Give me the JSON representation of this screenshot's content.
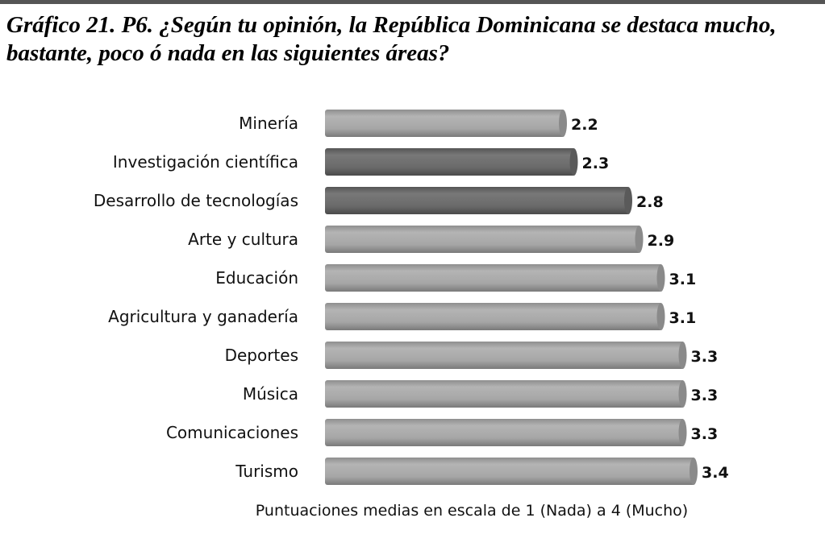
{
  "title": "Gráfico 21. P6. ¿Según tu opinión, la República Dominicana se destaca mucho, bastante, poco ó nada en las siguientes áreas?",
  "chart_data": {
    "type": "bar",
    "orientation": "horizontal",
    "title": "Gráfico 21. P6. ¿Según tu opinión, la República Dominicana se destaca mucho, bastante, poco ó nada en las siguientes áreas?",
    "xlabel": "Puntuaciones medias en escala de 1 (Nada) a  4 (Mucho)",
    "ylabel": "",
    "categories": [
      "Minería",
      "Investigación científica",
      "Desarrollo de tecnologías",
      "Arte y cultura",
      "Educación",
      "Agricultura y ganadería",
      "Deportes",
      "Música",
      "Comunicaciones",
      "Turismo"
    ],
    "values": [
      2.2,
      2.3,
      2.8,
      2.9,
      3.1,
      3.1,
      3.3,
      3.3,
      3.3,
      3.4
    ],
    "highlighted": [
      false,
      true,
      true,
      false,
      false,
      false,
      false,
      false,
      false,
      false
    ],
    "xlim": [
      0,
      4
    ],
    "grid": false,
    "colors": {
      "normal": "#a9a9a9",
      "highlight": "#6d6d6d"
    }
  }
}
